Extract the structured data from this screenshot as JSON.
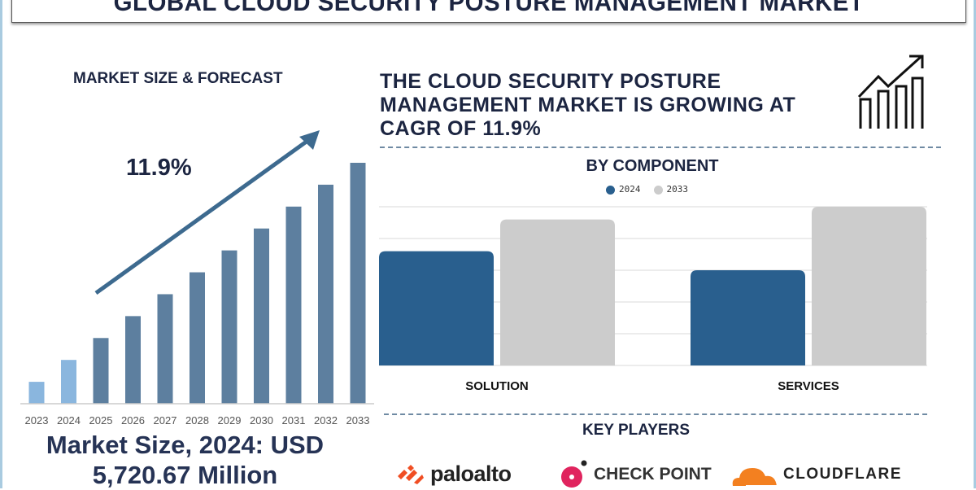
{
  "title": "GLOBAL CLOUD SECURITY POSTURE MANAGEMENT MARKET",
  "left_panel": {
    "heading": "MARKET SIZE & FORECAST",
    "cagr_label": "11.9%",
    "market_size_line1": "Market Size, 2024: USD",
    "market_size_line2": "5,720.67 Million"
  },
  "right_panel": {
    "headline": "THE CLOUD SECURITY POSTURE MANAGEMENT MARKET IS GROWING AT CAGR OF 11.9%",
    "growth_icon": "bar-chart-growth-arrow-icon",
    "component_heading": "BY COMPONENT",
    "key_players_heading": "KEY PLAYERS",
    "key_players": [
      {
        "name": "paloalto",
        "color": "#f04e23"
      },
      {
        "name": "CHECK POINT",
        "color": "#e0245e"
      },
      {
        "name": "CLOUDFLARE",
        "color": "#f38020"
      }
    ]
  },
  "chart_data": [
    {
      "type": "bar",
      "title": "",
      "categories": [
        "2023",
        "2024",
        "2025",
        "2026",
        "2027",
        "2028",
        "2029",
        "2030",
        "2031",
        "2032",
        "2033"
      ],
      "values": [
        1,
        2,
        3,
        4,
        5,
        6,
        7,
        8,
        9,
        10,
        11
      ],
      "highlight_categories": [
        "2023",
        "2024"
      ],
      "colors": {
        "historic": "#8ab6de",
        "forecast": "#5d7f9f"
      },
      "ylim": [
        0,
        11
      ],
      "grid": false,
      "trend_arrow": true
    },
    {
      "type": "bar",
      "title": "BY COMPONENT",
      "categories": [
        "SOLUTION",
        "SERVICES"
      ],
      "series": [
        {
          "name": "2024",
          "values": [
            3.6,
            3.0
          ],
          "color": "#295f8e"
        },
        {
          "name": "2033",
          "values": [
            4.6,
            5.0
          ],
          "color": "#cccccc"
        }
      ],
      "ylim": [
        0,
        5
      ],
      "grid": true,
      "legend": "top"
    }
  ]
}
